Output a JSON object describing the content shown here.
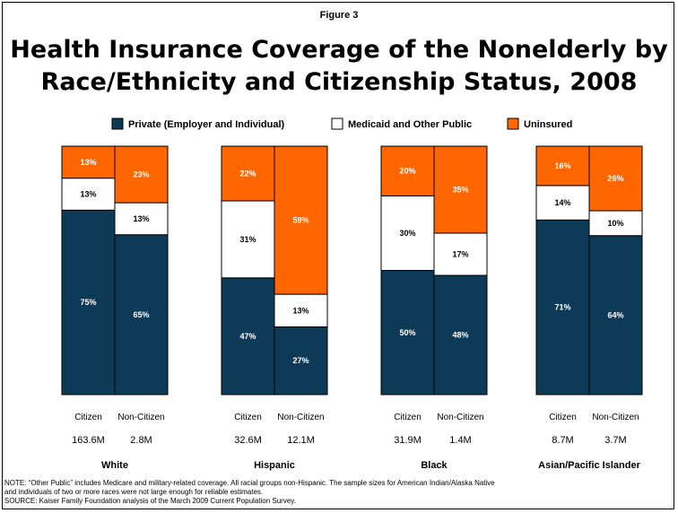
{
  "figure_label": "Figure 3",
  "title_line1": "Health Insurance Coverage of the Nonelderly by",
  "title_line2": "Race/Ethnicity and Citizenship Status, 2008",
  "colors": {
    "private": "#0d3a57",
    "medicaid": "#ffffff",
    "uninsured": "#ff6600",
    "outline": "#000000"
  },
  "chart_data": {
    "type": "bar",
    "stacked": true,
    "percent": true,
    "legend_position": "top",
    "series": [
      {
        "name": "Private (Employer and Individual)"
      },
      {
        "name": "Medicaid and Other Public"
      },
      {
        "name": "Uninsured"
      }
    ],
    "groups": [
      {
        "label": "White",
        "bars": [
          {
            "category": "Citizen",
            "sample": "163.6M",
            "values": [
              75,
              13,
              13
            ]
          },
          {
            "category": "Non-Citizen",
            "sample": "2.8M",
            "values": [
              65,
              13,
              23
            ]
          }
        ]
      },
      {
        "label": "Hispanic",
        "bars": [
          {
            "category": "Citizen",
            "sample": "32.6M",
            "values": [
              47,
              31,
              22
            ]
          },
          {
            "category": "Non-Citizen",
            "sample": "12.1M",
            "values": [
              27,
              13,
              59
            ]
          }
        ]
      },
      {
        "label": "Black",
        "bars": [
          {
            "category": "Citizen",
            "sample": "31.9M",
            "values": [
              50,
              30,
              20
            ]
          },
          {
            "category": "Non-Citizen",
            "sample": "1.4M",
            "values": [
              48,
              17,
              35
            ]
          }
        ]
      },
      {
        "label": "Asian/Pacific Islander",
        "bars": [
          {
            "category": "Citizen",
            "sample": "8.7M",
            "values": [
              71,
              14,
              16
            ]
          },
          {
            "category": "Non-Citizen",
            "sample": "3.7M",
            "values": [
              64,
              10,
              26
            ]
          }
        ]
      }
    ]
  },
  "notes": [
    "NOTE: “Other Public” includes Medicare and military-related coverage. All racial groups non-Hispanic. The sample sizes for American Indian/Alaska Native",
    "and individuals of two or more races were not large enough for reliable estimates.",
    "SOURCE: Kaiser Family Foundation analysis of the March 2009 Current Population Survey."
  ]
}
